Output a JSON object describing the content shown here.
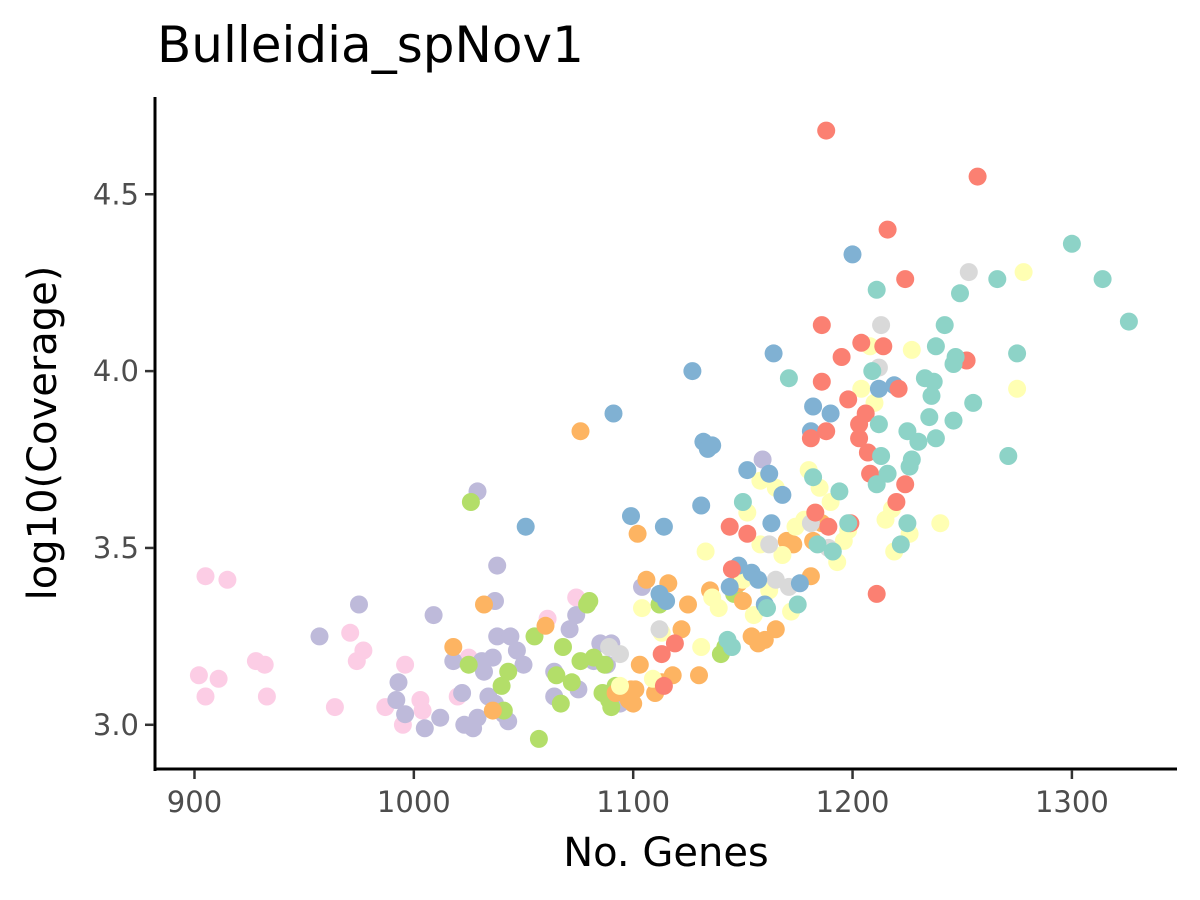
{
  "chart_data": {
    "type": "scatter",
    "title": "Bulleidia_spNov1",
    "xlabel": "No. Genes",
    "ylabel": "log10(Coverage)",
    "xlim": [
      882,
      1347
    ],
    "ylim": [
      2.875,
      4.775
    ],
    "x_ticks": [
      900,
      1000,
      1100,
      1200,
      1300
    ],
    "y_ticks": [
      3.0,
      3.5,
      4.0,
      4.5
    ],
    "x_tick_labels": [
      "900",
      "1000",
      "1100",
      "1200",
      "1300"
    ],
    "y_tick_labels": [
      "3.0",
      "3.5",
      "4.0",
      "4.5"
    ],
    "grid": false,
    "legend": "none",
    "series": [
      {
        "color": "#fccde5",
        "points": [
          [
            902,
            3.14
          ],
          [
            905,
            3.42
          ],
          [
            905,
            3.08
          ],
          [
            911,
            3.13
          ],
          [
            915,
            3.41
          ],
          [
            928,
            3.18
          ],
          [
            932,
            3.17
          ],
          [
            933,
            3.08
          ],
          [
            964,
            3.05
          ],
          [
            971,
            3.26
          ],
          [
            974,
            3.18
          ],
          [
            977,
            3.21
          ],
          [
            987,
            3.05
          ],
          [
            995,
            3.0
          ],
          [
            996,
            3.17
          ],
          [
            1003,
            3.07
          ],
          [
            1004,
            3.04
          ],
          [
            1020,
            3.08
          ],
          [
            1025,
            3.19
          ],
          [
            1061,
            3.3
          ],
          [
            1074,
            3.36
          ]
        ]
      },
      {
        "color": "#bebada",
        "points": [
          [
            957,
            3.25
          ],
          [
            975,
            3.34
          ],
          [
            992,
            3.07
          ],
          [
            993,
            3.12
          ],
          [
            996,
            3.03
          ],
          [
            1005,
            2.99
          ],
          [
            1009,
            3.31
          ],
          [
            1012,
            3.02
          ],
          [
            1018,
            3.18
          ],
          [
            1022,
            3.09
          ],
          [
            1023,
            3.0
          ],
          [
            1027,
            2.99
          ],
          [
            1029,
            3.02
          ],
          [
            1029,
            3.66
          ],
          [
            1031,
            3.18
          ],
          [
            1032,
            3.15
          ],
          [
            1034,
            3.08
          ],
          [
            1036,
            3.19
          ],
          [
            1037,
            3.35
          ],
          [
            1037,
            3.06
          ],
          [
            1038,
            3.45
          ],
          [
            1038,
            3.25
          ],
          [
            1041,
            3.03
          ],
          [
            1043,
            3.01
          ],
          [
            1044,
            3.25
          ],
          [
            1047,
            3.21
          ],
          [
            1050,
            3.17
          ],
          [
            1064,
            3.08
          ],
          [
            1064,
            3.15
          ],
          [
            1071,
            3.27
          ],
          [
            1074,
            3.31
          ],
          [
            1075,
            3.1
          ],
          [
            1082,
            3.18
          ],
          [
            1085,
            3.23
          ],
          [
            1088,
            3.17
          ],
          [
            1090,
            3.23
          ],
          [
            1094,
            3.06
          ],
          [
            1104,
            3.39
          ],
          [
            1159,
            3.75
          ]
        ]
      },
      {
        "color": "#b3de69",
        "points": [
          [
            1025,
            3.17
          ],
          [
            1026,
            3.63
          ],
          [
            1040,
            3.11
          ],
          [
            1041,
            3.04
          ],
          [
            1043,
            3.15
          ],
          [
            1055,
            3.25
          ],
          [
            1057,
            2.96
          ],
          [
            1065,
            3.14
          ],
          [
            1067,
            3.06
          ],
          [
            1068,
            3.22
          ],
          [
            1072,
            3.12
          ],
          [
            1076,
            3.18
          ],
          [
            1079,
            3.34
          ],
          [
            1080,
            3.35
          ],
          [
            1082,
            3.19
          ],
          [
            1086,
            3.09
          ],
          [
            1087,
            3.17
          ],
          [
            1089,
            3.07
          ],
          [
            1090,
            3.05
          ],
          [
            1092,
            3.11
          ],
          [
            1096,
            3.09
          ],
          [
            1112,
            3.34
          ],
          [
            1140,
            3.2
          ],
          [
            1142,
            3.22
          ],
          [
            1146,
            3.37
          ]
        ]
      },
      {
        "color": "#fdb462",
        "points": [
          [
            1018,
            3.22
          ],
          [
            1032,
            3.34
          ],
          [
            1036,
            3.04
          ],
          [
            1060,
            3.28
          ],
          [
            1076,
            3.83
          ],
          [
            1092,
            3.09
          ],
          [
            1098,
            3.07
          ],
          [
            1099,
            3.1
          ],
          [
            1100,
            3.06
          ],
          [
            1101,
            3.1
          ],
          [
            1102,
            3.54
          ],
          [
            1103,
            3.17
          ],
          [
            1106,
            3.41
          ],
          [
            1110,
            3.09
          ],
          [
            1113,
            3.12
          ],
          [
            1116,
            3.4
          ],
          [
            1118,
            3.14
          ],
          [
            1122,
            3.27
          ],
          [
            1125,
            3.34
          ],
          [
            1130,
            3.14
          ],
          [
            1135,
            3.38
          ],
          [
            1148,
            3.4
          ],
          [
            1150,
            3.35
          ],
          [
            1154,
            3.25
          ],
          [
            1157,
            3.23
          ],
          [
            1160,
            3.24
          ],
          [
            1165,
            3.27
          ],
          [
            1170,
            3.52
          ],
          [
            1173,
            3.51
          ],
          [
            1181,
            3.42
          ],
          [
            1182,
            3.52
          ],
          [
            1186,
            3.57
          ]
        ]
      },
      {
        "color": "#ffffb3",
        "points": [
          [
            1094,
            3.11
          ],
          [
            1104,
            3.33
          ],
          [
            1109,
            3.13
          ],
          [
            1113,
            3.26
          ],
          [
            1131,
            3.22
          ],
          [
            1133,
            3.49
          ],
          [
            1136,
            3.36
          ],
          [
            1139,
            3.33
          ],
          [
            1150,
            3.41
          ],
          [
            1152,
            3.6
          ],
          [
            1155,
            3.31
          ],
          [
            1158,
            3.69
          ],
          [
            1158,
            3.51
          ],
          [
            1162,
            3.38
          ],
          [
            1165,
            3.67
          ],
          [
            1168,
            3.48
          ],
          [
            1172,
            3.32
          ],
          [
            1174,
            3.56
          ],
          [
            1178,
            3.58
          ],
          [
            1180,
            3.72
          ],
          [
            1183,
            3.6
          ],
          [
            1185,
            3.67
          ],
          [
            1190,
            3.63
          ],
          [
            1193,
            3.46
          ],
          [
            1196,
            3.52
          ],
          [
            1198,
            3.55
          ],
          [
            1204,
            3.95
          ],
          [
            1208,
            4.07
          ],
          [
            1210,
            3.91
          ],
          [
            1215,
            3.58
          ],
          [
            1218,
            3.61
          ],
          [
            1219,
            3.49
          ],
          [
            1226,
            3.54
          ],
          [
            1227,
            4.06
          ],
          [
            1240,
            3.57
          ],
          [
            1275,
            3.95
          ],
          [
            1278,
            4.28
          ]
        ]
      },
      {
        "color": "#d9d9d9",
        "points": [
          [
            1089,
            3.22
          ],
          [
            1094,
            3.2
          ],
          [
            1112,
            3.27
          ],
          [
            1162,
            3.51
          ],
          [
            1165,
            3.41
          ],
          [
            1171,
            3.39
          ],
          [
            1181,
            3.57
          ],
          [
            1189,
            3.5
          ],
          [
            1213,
            4.13
          ],
          [
            1253,
            4.28
          ],
          [
            1212,
            4.01
          ]
        ]
      },
      {
        "color": "#80b1d3",
        "points": [
          [
            1051,
            3.56
          ],
          [
            1091,
            3.88
          ],
          [
            1099,
            3.59
          ],
          [
            1112,
            3.37
          ],
          [
            1114,
            3.56
          ],
          [
            1115,
            3.35
          ],
          [
            1127,
            4.0
          ],
          [
            1131,
            3.62
          ],
          [
            1132,
            3.8
          ],
          [
            1134,
            3.78
          ],
          [
            1136,
            3.79
          ],
          [
            1144,
            3.39
          ],
          [
            1148,
            3.45
          ],
          [
            1152,
            3.72
          ],
          [
            1154,
            3.43
          ],
          [
            1157,
            3.41
          ],
          [
            1160,
            3.34
          ],
          [
            1162,
            3.71
          ],
          [
            1163,
            3.57
          ],
          [
            1164,
            4.05
          ],
          [
            1168,
            3.65
          ],
          [
            1176,
            3.4
          ],
          [
            1181,
            3.83
          ],
          [
            1182,
            3.9
          ],
          [
            1190,
            3.88
          ],
          [
            1200,
            4.33
          ],
          [
            1212,
            3.95
          ],
          [
            1219,
            3.96
          ]
        ]
      },
      {
        "color": "#fb8072",
        "points": [
          [
            1113,
            3.2
          ],
          [
            1114,
            3.11
          ],
          [
            1119,
            3.23
          ],
          [
            1144,
            3.56
          ],
          [
            1145,
            3.44
          ],
          [
            1152,
            3.54
          ],
          [
            1181,
            3.81
          ],
          [
            1183,
            3.6
          ],
          [
            1186,
            3.97
          ],
          [
            1186,
            4.13
          ],
          [
            1188,
            4.68
          ],
          [
            1188,
            3.83
          ],
          [
            1189,
            3.56
          ],
          [
            1195,
            4.04
          ],
          [
            1198,
            3.92
          ],
          [
            1199,
            3.57
          ],
          [
            1203,
            3.85
          ],
          [
            1203,
            3.81
          ],
          [
            1204,
            4.08
          ],
          [
            1206,
            3.88
          ],
          [
            1207,
            3.77
          ],
          [
            1208,
            3.71
          ],
          [
            1211,
            3.37
          ],
          [
            1214,
            4.07
          ],
          [
            1216,
            4.4
          ],
          [
            1220,
            3.63
          ],
          [
            1221,
            3.95
          ],
          [
            1224,
            4.26
          ],
          [
            1224,
            3.68
          ],
          [
            1252,
            4.03
          ],
          [
            1257,
            4.55
          ]
        ]
      },
      {
        "color": "#8dd3c7",
        "points": [
          [
            1143,
            3.24
          ],
          [
            1145,
            3.22
          ],
          [
            1150,
            3.63
          ],
          [
            1161,
            3.33
          ],
          [
            1171,
            3.98
          ],
          [
            1175,
            3.34
          ],
          [
            1182,
            3.7
          ],
          [
            1184,
            3.51
          ],
          [
            1191,
            3.49
          ],
          [
            1194,
            3.66
          ],
          [
            1198,
            3.57
          ],
          [
            1209,
            4.0
          ],
          [
            1211,
            4.23
          ],
          [
            1211,
            3.68
          ],
          [
            1212,
            3.85
          ],
          [
            1213,
            3.76
          ],
          [
            1216,
            3.71
          ],
          [
            1222,
            3.51
          ],
          [
            1225,
            3.57
          ],
          [
            1225,
            3.83
          ],
          [
            1226,
            3.73
          ],
          [
            1227,
            3.75
          ],
          [
            1230,
            3.8
          ],
          [
            1233,
            3.98
          ],
          [
            1235,
            3.87
          ],
          [
            1236,
            3.93
          ],
          [
            1237,
            3.97
          ],
          [
            1238,
            3.81
          ],
          [
            1238,
            4.07
          ],
          [
            1242,
            4.13
          ],
          [
            1246,
            3.86
          ],
          [
            1246,
            4.02
          ],
          [
            1247,
            4.04
          ],
          [
            1249,
            4.22
          ],
          [
            1255,
            3.91
          ],
          [
            1266,
            4.26
          ],
          [
            1271,
            3.76
          ],
          [
            1275,
            4.05
          ],
          [
            1300,
            4.36
          ],
          [
            1314,
            4.26
          ],
          [
            1326,
            4.14
          ]
        ]
      }
    ]
  }
}
